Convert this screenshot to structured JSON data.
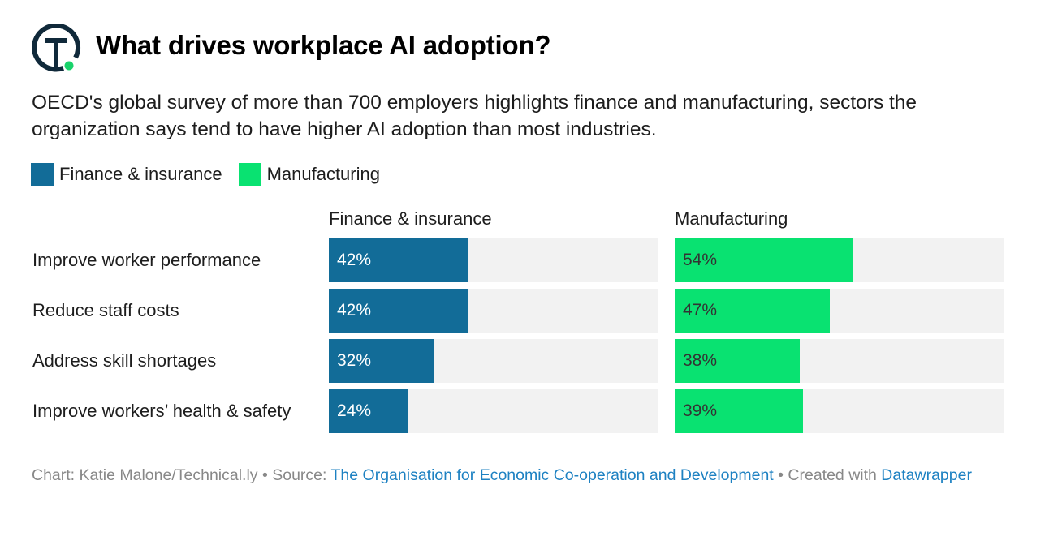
{
  "header": {
    "logo": "technically-logo",
    "title": "What drives workplace AI adoption?",
    "subtitle": "OECD's global survey of more than 700 employers highlights finance and manufacturing, sectors the organization says tend to have higher AI adoption than most industries."
  },
  "legend": [
    {
      "label": "Finance & insurance",
      "color": "#126c98"
    },
    {
      "label": "Manufacturing",
      "color": "#09e271"
    }
  ],
  "footer": {
    "chart_prefix": "Chart: Katie Malone/Technical.ly",
    "separator": " • ",
    "source_prefix": "Source: ",
    "source_link": "The Organisation for Economic Co-operation and Development",
    "created_prefix": "Created with ",
    "created_link": "Datawrapper"
  },
  "chart_data": {
    "type": "bar",
    "orientation": "horizontal",
    "layout": "small-multiples",
    "title": "What drives workplace AI adoption?",
    "xlabel": "",
    "ylabel": "",
    "xlim": [
      0,
      100
    ],
    "unit": "%",
    "grid": false,
    "legend_position": "top-left",
    "categories": [
      "Improve worker performance",
      "Reduce staff costs",
      "Address skill shortages",
      "Improve workers’ health & safety"
    ],
    "series": [
      {
        "name": "Finance & insurance",
        "color": "#126c98",
        "label_color": "#ffffff",
        "values": [
          42,
          42,
          32,
          24
        ],
        "labels": [
          "42%",
          "42%",
          "32%",
          "24%"
        ]
      },
      {
        "name": "Manufacturing",
        "color": "#09e271",
        "label_color": "#333333",
        "values": [
          54,
          47,
          38,
          39
        ],
        "labels": [
          "54%",
          "47%",
          "38%",
          "39%"
        ]
      }
    ],
    "background_track_color": "#f2f2f2"
  }
}
